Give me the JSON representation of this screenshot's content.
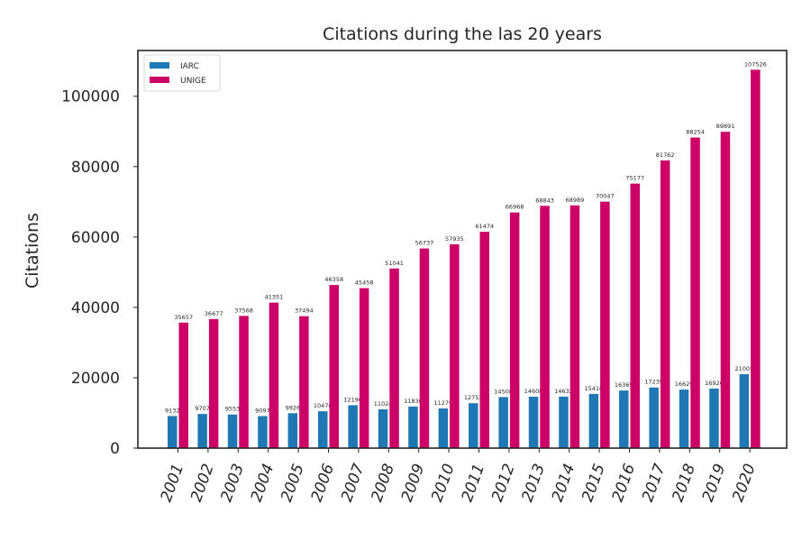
{
  "chart_data": {
    "type": "bar",
    "title": "Citations during the las 20 years",
    "xlabel": "",
    "ylabel": "Citations",
    "ylim": [
      0,
      113000
    ],
    "yticks": [
      0,
      20000,
      40000,
      60000,
      80000,
      100000
    ],
    "grid": false,
    "legend_position": "top-left",
    "categories": [
      "2001",
      "2002",
      "2003",
      "2004",
      "2005",
      "2006",
      "2007",
      "2008",
      "2009",
      "2010",
      "2011",
      "2012",
      "2013",
      "2014",
      "2015",
      "2016",
      "2017",
      "2018",
      "2019",
      "2020"
    ],
    "series": [
      {
        "name": "IARC",
        "color": "#1f77b4",
        "values": [
          9132,
          9707,
          9553,
          9097,
          9926,
          10476,
          12196,
          11024,
          11830,
          11279,
          12753,
          14508,
          14608,
          14632,
          15410,
          16369,
          17239,
          16629,
          16926,
          21005
        ]
      },
      {
        "name": "UNIGE",
        "color": "#cc0066",
        "values": [
          35657,
          36677,
          37568,
          41351,
          37494,
          46358,
          45458,
          51041,
          56737,
          57935,
          61474,
          66968,
          68843,
          68989,
          70047,
          75177,
          81762,
          88254,
          89891,
          107526
        ]
      }
    ]
  }
}
